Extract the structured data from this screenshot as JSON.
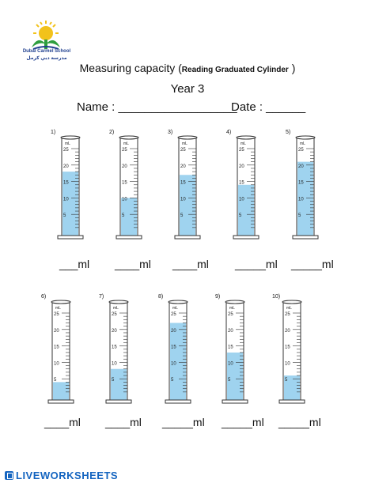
{
  "header": {
    "school_name_en": "Dubai Carmel School",
    "school_name_ar": "مدرسة دبي كرمل",
    "title_main": "Measuring capacity (",
    "title_small": "Reading Graduated Cylinder",
    "title_end": " )",
    "subtitle": "Year 3",
    "name_label": "Name : __________________",
    "date_label": "Date : ______"
  },
  "cylinders_row1": [
    {
      "number": "1)",
      "unit": "mL",
      "fill": 18,
      "answer": "___ml"
    },
    {
      "number": "2)",
      "unit": "mL",
      "fill": 10,
      "answer": "____ml"
    },
    {
      "number": "3)",
      "unit": "mL",
      "fill": 17,
      "answer": "____ml"
    },
    {
      "number": "4)",
      "unit": "mL",
      "fill": 14,
      "answer": "_____ml"
    },
    {
      "number": "5)",
      "unit": "mL",
      "fill": 21,
      "answer": "_____ml"
    }
  ],
  "cylinders_row2": [
    {
      "number": "6)",
      "unit": "mL",
      "fill": 4,
      "answer": "____ml"
    },
    {
      "number": "7)",
      "unit": "mL",
      "fill": 8,
      "answer": "____ml"
    },
    {
      "number": "8)",
      "unit": "mL",
      "fill": 22,
      "answer": "_____ml"
    },
    {
      "number": "9)",
      "unit": "mL",
      "fill": 13,
      "answer": "_____ml"
    },
    {
      "number": "10)",
      "unit": "mL",
      "fill": 6,
      "answer": "_____ml"
    }
  ],
  "scale_labels": [
    "5",
    "10",
    "15",
    "20",
    "25"
  ],
  "colors": {
    "water": "#9fd3ef",
    "logo_sun": "#f2c21b",
    "logo_leaf": "#2e9e3e",
    "brand": "#1565c0"
  },
  "footer": {
    "brand": "LIVEWORKSHEETS"
  }
}
